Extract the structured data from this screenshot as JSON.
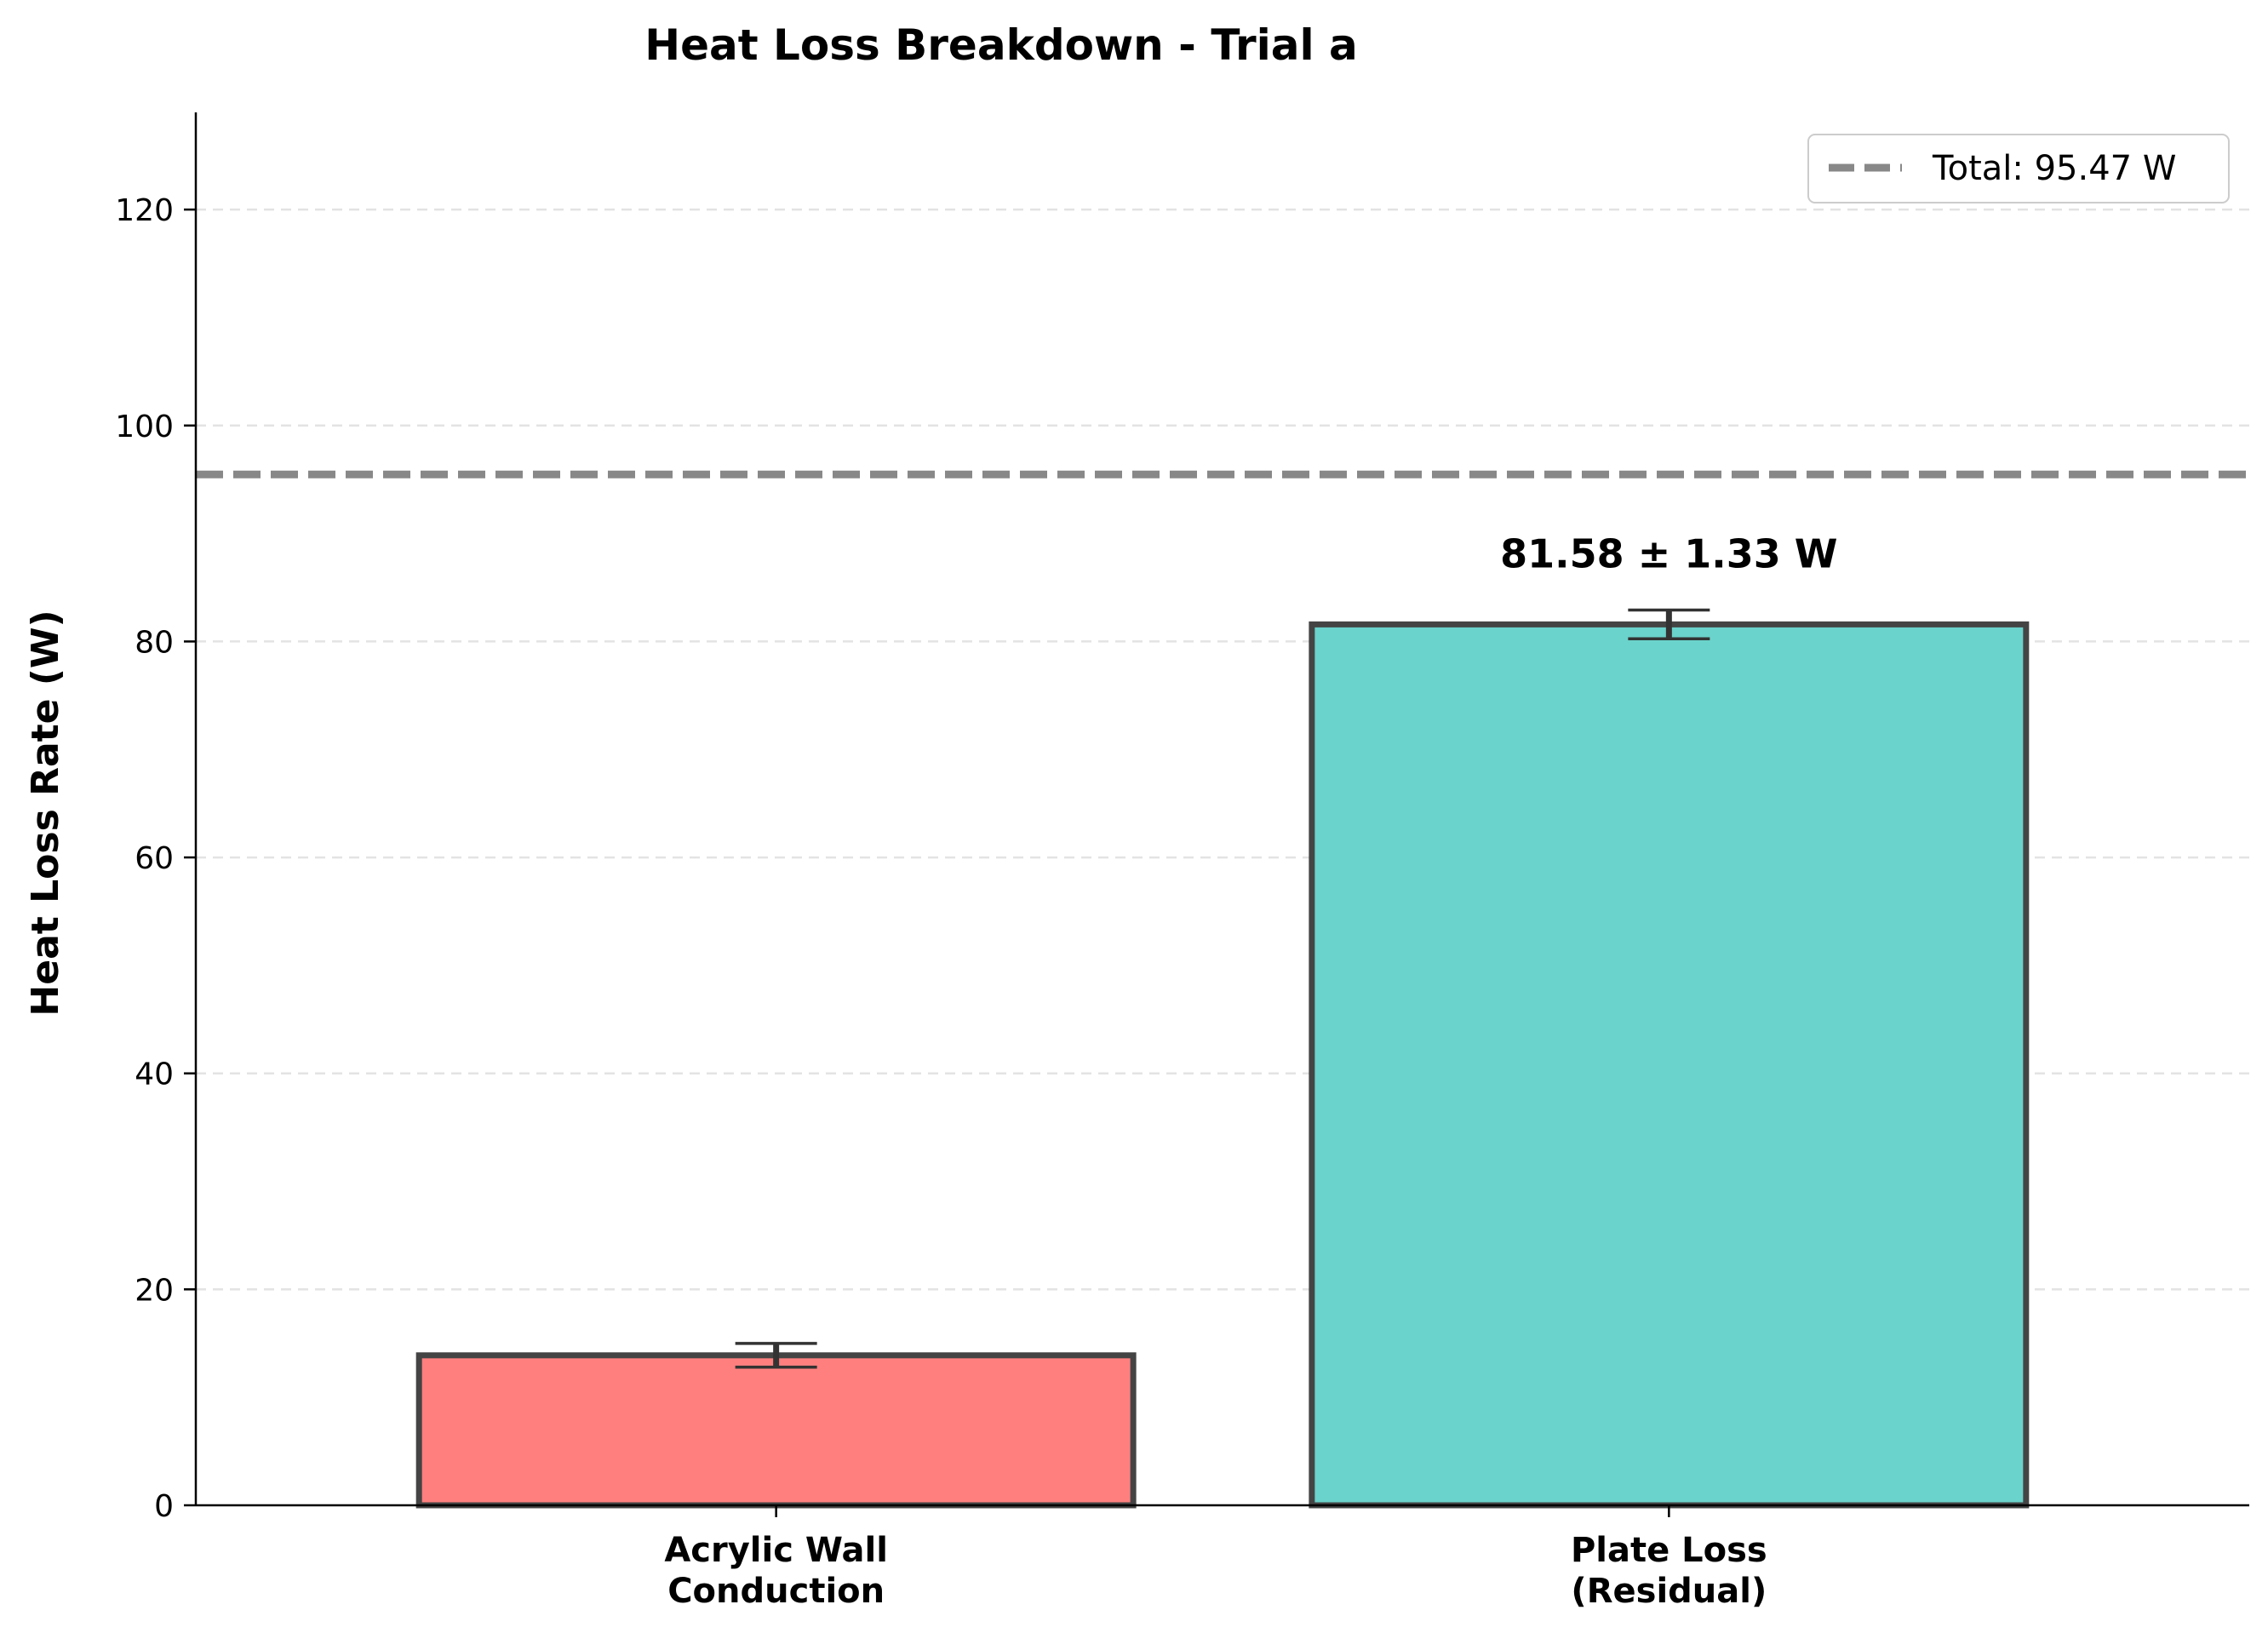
{
  "chart_data": {
    "type": "bar",
    "title": "Heat Loss Breakdown - Trial a",
    "xlabel": "",
    "ylabel": "Heat Loss Rate (W)",
    "ylim": [
      0,
      129
    ],
    "yticks": [
      0,
      20,
      40,
      60,
      80,
      100,
      120
    ],
    "grid": "y-dashed",
    "legend_position": "top-right",
    "categories": [
      "Acrylic Wall\nConduction",
      "Plate Loss\n(Residual)"
    ],
    "values": [
      13.89,
      81.58
    ],
    "errors": [
      1.1,
      1.33
    ],
    "colors": [
      "#ff7f7f",
      "#6ad3cb"
    ],
    "bar_edge_color": "#444444",
    "data_labels": [
      "",
      "81.58 ± 1.33 W"
    ],
    "reference_line": {
      "value": 95.47,
      "label": "Total: 95.47 W",
      "color": "#888888",
      "style": "dashed"
    }
  }
}
